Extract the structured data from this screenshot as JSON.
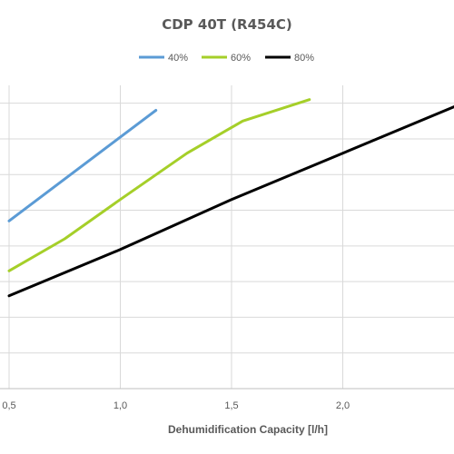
{
  "chart_data": {
    "type": "line",
    "title": "CDP 40T (R454C)",
    "xlabel": "Dehumidification Capacity [l/h]",
    "ylabel": "",
    "xlim": [
      0.5,
      2.5
    ],
    "ylim": [
      0,
      8.5
    ],
    "x_ticks": [
      0.5,
      1.0,
      1.5,
      2.0
    ],
    "x_tick_labels": [
      "0,5",
      "1,0",
      "1,5",
      "2,0"
    ],
    "y_grid_values": [
      1,
      2,
      3,
      4,
      5,
      6,
      7,
      8
    ],
    "grid": true,
    "legend_position": "top-center",
    "series": [
      {
        "name": "40%",
        "color": "#5b9bd5",
        "x": [
          0.5,
          1.16
        ],
        "y": [
          4.7,
          7.8
        ]
      },
      {
        "name": "60%",
        "color": "#a5cf29",
        "x": [
          0.5,
          0.75,
          1.0,
          1.3,
          1.55,
          1.85
        ],
        "y": [
          3.3,
          4.2,
          5.3,
          6.6,
          7.5,
          8.1
        ]
      },
      {
        "name": "80%",
        "color": "#000000",
        "x": [
          0.5,
          1.0,
          1.5,
          2.0,
          2.5
        ],
        "y": [
          2.6,
          3.9,
          5.3,
          6.6,
          7.9
        ]
      }
    ]
  }
}
